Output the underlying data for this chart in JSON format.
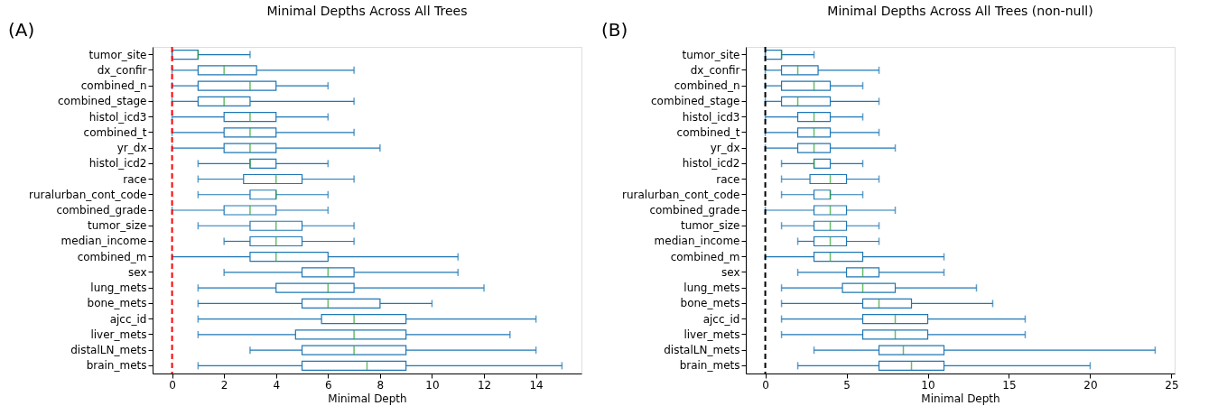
{
  "chart_data": [
    {
      "type": "box",
      "title": "Minimal Depths Across All Trees",
      "xlabel": "Minimal Depth",
      "orientation": "horizontal",
      "annotations": [
        "(A)"
      ],
      "categories": [
        "tumor_site",
        "dx_confir",
        "combined_n",
        "combined_stage",
        "histol_icd3",
        "combined_t",
        "yr_dx",
        "histol_icd2",
        "race",
        "ruralurban_cont_code",
        "combined_grade",
        "tumor_size",
        "median_income",
        "combined_m",
        "sex",
        "lung_mets",
        "bone_mets",
        "ajcc_id",
        "liver_mets",
        "distalLN_mets",
        "brain_mets"
      ],
      "series": [
        {
          "color": "#1f77b4",
          "boxes": [
            {
              "low": 0,
              "q1": 0,
              "median": 1,
              "q3": 1,
              "high": 3
            },
            {
              "low": 0,
              "q1": 1,
              "median": 2,
              "q3": 3.25,
              "high": 7
            },
            {
              "low": 0,
              "q1": 1,
              "median": 3,
              "q3": 4,
              "high": 6
            },
            {
              "low": 0,
              "q1": 1,
              "median": 2,
              "q3": 3,
              "high": 7
            },
            {
              "low": 0,
              "q1": 2,
              "median": 3,
              "q3": 4,
              "high": 6
            },
            {
              "low": 0,
              "q1": 2,
              "median": 3,
              "q3": 4,
              "high": 7
            },
            {
              "low": 0,
              "q1": 2,
              "median": 3,
              "q3": 4,
              "high": 8
            },
            {
              "low": 1,
              "q1": 3,
              "median": 3,
              "q3": 4,
              "high": 6
            },
            {
              "low": 1,
              "q1": 2.75,
              "median": 4,
              "q3": 5,
              "high": 7
            },
            {
              "low": 1,
              "q1": 3,
              "median": 4,
              "q3": 4,
              "high": 6
            },
            {
              "low": 0,
              "q1": 2,
              "median": 3,
              "q3": 4,
              "high": 6
            },
            {
              "low": 1,
              "q1": 3,
              "median": 4,
              "q3": 5,
              "high": 7
            },
            {
              "low": 2,
              "q1": 3,
              "median": 4,
              "q3": 5,
              "high": 7
            },
            {
              "low": 0,
              "q1": 3,
              "median": 4,
              "q3": 6,
              "high": 11
            },
            {
              "low": 2,
              "q1": 5,
              "median": 6,
              "q3": 7,
              "high": 11
            },
            {
              "low": 1,
              "q1": 4,
              "median": 6,
              "q3": 7,
              "high": 12
            },
            {
              "low": 1,
              "q1": 5,
              "median": 6,
              "q3": 8,
              "high": 10
            },
            {
              "low": 1,
              "q1": 5.75,
              "median": 7,
              "q3": 9,
              "high": 14
            },
            {
              "low": 1,
              "q1": 4.75,
              "median": 7,
              "q3": 9,
              "high": 13
            },
            {
              "low": 3,
              "q1": 5,
              "median": 7,
              "q3": 9,
              "high": 14
            },
            {
              "low": 1,
              "q1": 5,
              "median": 7.5,
              "q3": 9,
              "high": 15
            }
          ]
        }
      ],
      "xlim": [
        -0.75,
        15.75
      ],
      "xticks": [
        0,
        2,
        4,
        6,
        8,
        10,
        12,
        14
      ],
      "ref_lines": [
        {
          "axis": "x",
          "value": 0,
          "color": "#ff0000",
          "line_style": "dashed"
        }
      ],
      "grid": false
    },
    {
      "type": "box",
      "title": "Minimal Depths Across All Trees (non-null)",
      "xlabel": "Minimal Depth",
      "orientation": "horizontal",
      "annotations": [
        "(B)"
      ],
      "categories": [
        "tumor_site",
        "dx_confir",
        "combined_n",
        "combined_stage",
        "histol_icd3",
        "combined_t",
        "yr_dx",
        "histol_icd2",
        "race",
        "ruralurban_cont_code",
        "combined_grade",
        "tumor_size",
        "median_income",
        "combined_m",
        "sex",
        "lung_mets",
        "bone_mets",
        "ajcc_id",
        "liver_mets",
        "distalLN_mets",
        "brain_mets"
      ],
      "series": [
        {
          "color": "#1f77b4",
          "boxes": [
            {
              "low": 0,
              "q1": 0,
              "median": 1,
              "q3": 1,
              "high": 3
            },
            {
              "low": 0,
              "q1": 1,
              "median": 2,
              "q3": 3.25,
              "high": 7
            },
            {
              "low": 0,
              "q1": 1,
              "median": 3,
              "q3": 4,
              "high": 6
            },
            {
              "low": 0,
              "q1": 1,
              "median": 2,
              "q3": 4,
              "high": 7
            },
            {
              "low": 0,
              "q1": 2,
              "median": 3,
              "q3": 4,
              "high": 6
            },
            {
              "low": 0,
              "q1": 2,
              "median": 3,
              "q3": 4,
              "high": 7
            },
            {
              "low": 0,
              "q1": 2,
              "median": 3,
              "q3": 4,
              "high": 8
            },
            {
              "low": 1,
              "q1": 3,
              "median": 3,
              "q3": 4,
              "high": 6
            },
            {
              "low": 1,
              "q1": 2.75,
              "median": 4,
              "q3": 5,
              "high": 7
            },
            {
              "low": 1,
              "q1": 3,
              "median": 4,
              "q3": 4,
              "high": 6
            },
            {
              "low": 0,
              "q1": 3,
              "median": 4,
              "q3": 5,
              "high": 8
            },
            {
              "low": 1,
              "q1": 3,
              "median": 4,
              "q3": 5,
              "high": 7
            },
            {
              "low": 2,
              "q1": 3,
              "median": 4,
              "q3": 5,
              "high": 7
            },
            {
              "low": 0,
              "q1": 3,
              "median": 4,
              "q3": 6,
              "high": 11
            },
            {
              "low": 2,
              "q1": 5,
              "median": 6,
              "q3": 7,
              "high": 11
            },
            {
              "low": 1,
              "q1": 4.75,
              "median": 6,
              "q3": 8,
              "high": 13
            },
            {
              "low": 1,
              "q1": 6,
              "median": 7,
              "q3": 9,
              "high": 14
            },
            {
              "low": 1,
              "q1": 6,
              "median": 8,
              "q3": 10,
              "high": 16
            },
            {
              "low": 1,
              "q1": 6,
              "median": 8,
              "q3": 10,
              "high": 16
            },
            {
              "low": 3,
              "q1": 7,
              "median": 8.5,
              "q3": 11,
              "high": 24
            },
            {
              "low": 2,
              "q1": 7,
              "median": 9,
              "q3": 11,
              "high": 20
            }
          ]
        }
      ],
      "xlim": [
        -1.2,
        25.2
      ],
      "xticks": [
        0,
        5,
        10,
        15,
        20,
        25
      ],
      "ref_lines": [
        {
          "axis": "x",
          "value": 0,
          "color": "#000000",
          "line_style": "dashed"
        }
      ],
      "grid": false
    }
  ]
}
